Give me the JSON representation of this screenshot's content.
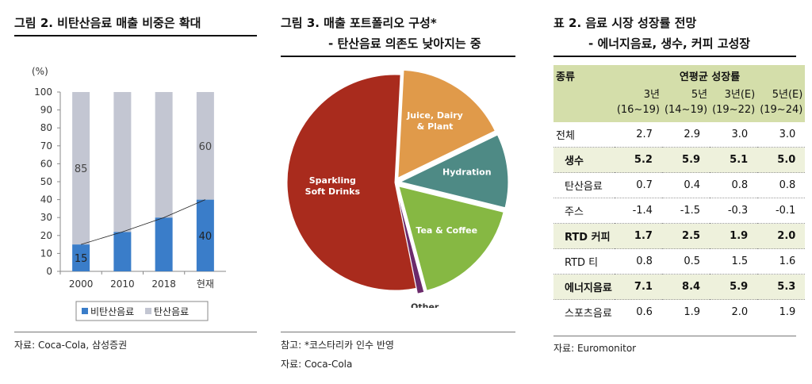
{
  "panel1": {
    "title": "그림 2. 비탄산음료 매출 비중은 확대",
    "source": "자료: Coca-Cola, 삼성증권"
  },
  "panel2": {
    "title_line1": "그림 3. 매출 포트폴리오 구성*",
    "title_line2": "- 탄산음료 의존도 낮아지는 중",
    "note": "참고: *코스타리카 인수 반영",
    "source": "자료: Coca-Cola"
  },
  "panel3": {
    "title_line1": "표 2. 음료 시장 성장률 전망",
    "title_line2": "- 에너지음료, 생수, 커피 고성장",
    "source": "자료: Euromonitor",
    "table": {
      "col0_header": "종류",
      "group_header": "연평균 성장률",
      "columns": [
        {
          "top": "3년",
          "bottom": "(16~19)"
        },
        {
          "top": "5년",
          "bottom": "(14~19)"
        },
        {
          "top": "3년(E)",
          "bottom": "(19~22)"
        },
        {
          "top": "5년(E)",
          "bottom": "(19~24)"
        }
      ],
      "rows": [
        {
          "label": "전체",
          "values": [
            "2.7",
            "2.9",
            "3.0",
            "3.0"
          ],
          "highlight": false,
          "indent": false
        },
        {
          "label": "생수",
          "values": [
            "5.2",
            "5.9",
            "5.1",
            "5.0"
          ],
          "highlight": true,
          "indent": true
        },
        {
          "label": "탄산음료",
          "values": [
            "0.7",
            "0.4",
            "0.8",
            "0.8"
          ],
          "highlight": false,
          "indent": true
        },
        {
          "label": "주스",
          "values": [
            "-1.4",
            "-1.5",
            "-0.3",
            "-0.1"
          ],
          "highlight": false,
          "indent": true
        },
        {
          "label": "RTD 커피",
          "values": [
            "1.7",
            "2.5",
            "1.9",
            "2.0"
          ],
          "highlight": true,
          "indent": true
        },
        {
          "label": "RTD 티",
          "values": [
            "0.8",
            "0.5",
            "1.5",
            "1.6"
          ],
          "highlight": false,
          "indent": true
        },
        {
          "label": "에너지음료",
          "values": [
            "7.1",
            "8.4",
            "5.9",
            "5.3"
          ],
          "highlight": true,
          "indent": true
        },
        {
          "label": "스포츠음료",
          "values": [
            "0.6",
            "1.9",
            "2.0",
            "1.9"
          ],
          "highlight": false,
          "indent": true
        }
      ]
    }
  },
  "colors": {
    "non_carbonated": "#3a7dc9",
    "carbonated": "#c3c6d2",
    "pie_sparkling": "#a92b1d",
    "pie_juice": "#e09a4a",
    "pie_hydration": "#4e8a85",
    "pie_tea": "#86b843",
    "pie_other": "#6b2a6b",
    "table_head": "#d4deaa",
    "table_highlight": "#eef1dc"
  },
  "chart_data": [
    {
      "type": "bar",
      "stacked": true,
      "categories": [
        "2000",
        "2010",
        "2018",
        "현재"
      ],
      "series": [
        {
          "name": "비탄산음료",
          "values": [
            15,
            22,
            30,
            40
          ]
        },
        {
          "name": "탄산음료",
          "values": [
            85,
            78,
            70,
            60
          ]
        }
      ],
      "data_labels": {
        "비탄산음료": {
          "2000": "15",
          "현재": "40"
        },
        "탄산음료": {
          "2000": "85",
          "현재": "60"
        }
      },
      "ylabel": "(%)",
      "ylim": [
        0,
        100
      ],
      "yticks": [
        0,
        10,
        20,
        30,
        40,
        50,
        60,
        70,
        80,
        90,
        100
      ],
      "trend_line_series": "비탄산음료",
      "legend_position": "bottom",
      "grid": false
    },
    {
      "type": "pie",
      "slices": [
        {
          "label": "Juice, Dairy & Plant",
          "value": 17
        },
        {
          "label": "Hydration",
          "value": 11
        },
        {
          "label": "Tea & Coffee",
          "value": 17
        },
        {
          "label": "Other",
          "value": 1
        },
        {
          "label": "Sparkling Soft Drinks",
          "value": 54
        }
      ]
    }
  ]
}
